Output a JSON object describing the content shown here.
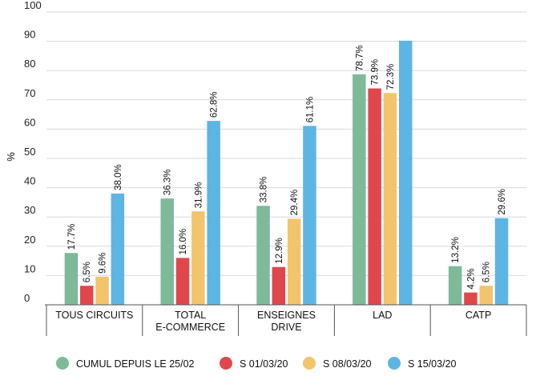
{
  "chart_data": {
    "type": "bar",
    "title": "",
    "xlabel": "",
    "ylabel": "%",
    "ylim": [
      0,
      100
    ],
    "yticks": [
      0,
      10,
      20,
      30,
      40,
      50,
      60,
      70,
      80,
      90,
      100
    ],
    "grid": true,
    "legend_position": "bottom",
    "categories": [
      [
        "TOUS CIRCUITS"
      ],
      [
        "TOTAL",
        "E-COMMERCE"
      ],
      [
        "ENSEIGNES",
        "DRIVE"
      ],
      [
        "LAD"
      ],
      [
        "CATP"
      ]
    ],
    "series": [
      {
        "name": "CUMUL DEPUIS LE 25/02",
        "color": "#7dba9a",
        "values": [
          17.7,
          36.3,
          33.8,
          78.7,
          13.2
        ],
        "labels": [
          "17.7%",
          "36.3%",
          "33.8%",
          "78.7%",
          "13.2%"
        ]
      },
      {
        "name": "S 01/03/20",
        "color": "#e0474c",
        "values": [
          6.5,
          16.0,
          12.9,
          73.9,
          4.2
        ],
        "labels": [
          "6.5%",
          "16.0%",
          "12.9%",
          "73.9%",
          "4.2%"
        ]
      },
      {
        "name": "S 08/03/20",
        "color": "#f2c46b",
        "values": [
          9.6,
          31.9,
          29.4,
          72.3,
          6.5
        ],
        "labels": [
          "9.6%",
          "31.9%",
          "29.4%",
          "72.3%",
          "6.5%"
        ]
      },
      {
        "name": "S 15/03/20",
        "color": "#5db5e3",
        "values": [
          38.0,
          62.8,
          61.1,
          90.2,
          29.6
        ],
        "labels": [
          "38.0%",
          "62.8%",
          "61.1%",
          "",
          "29.6%"
        ]
      }
    ]
  }
}
